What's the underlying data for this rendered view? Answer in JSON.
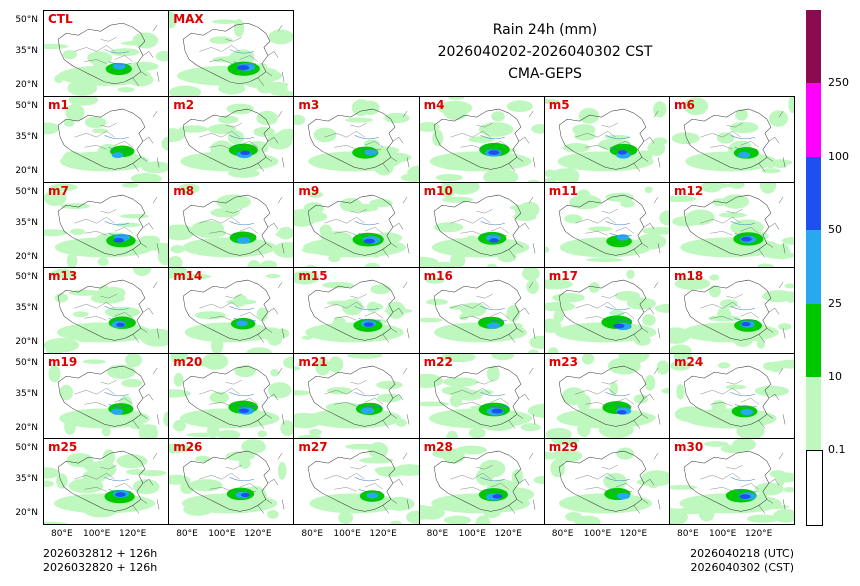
{
  "title": {
    "line1": "Rain 24h (mm)",
    "line2": "2026040202-2026040302 CST",
    "line3": "CMA-GEPS"
  },
  "panels": {
    "top": [
      "CTL",
      "MAX"
    ],
    "members": [
      "m1",
      "m2",
      "m3",
      "m4",
      "m5",
      "m6",
      "m7",
      "m8",
      "m9",
      "m10",
      "m11",
      "m12",
      "m13",
      "m14",
      "m15",
      "m16",
      "m17",
      "m18",
      "m19",
      "m20",
      "m21",
      "m22",
      "m23",
      "m24",
      "m25",
      "m26",
      "m27",
      "m28",
      "m29",
      "m30"
    ]
  },
  "axes": {
    "lat_labels": [
      "50°N",
      "35°N",
      "20°N"
    ],
    "lon_labels": [
      "80°E",
      "100°E",
      "120°E"
    ]
  },
  "footer": {
    "left_line1": "2026032812 + 126h",
    "left_line2": "2026032820 + 126h",
    "right_line1": "2026040218 (UTC)",
    "right_line2": "2026040302 (CST)"
  },
  "colorbar": {
    "labels": [
      "250",
      "100",
      "50",
      "25",
      "10",
      "0.1"
    ],
    "colors": [
      "#8b0a50",
      "#ff00ff",
      "#1e50f0",
      "#28a8f0",
      "#00c800",
      "#bef8be",
      "#ffffff"
    ]
  }
}
